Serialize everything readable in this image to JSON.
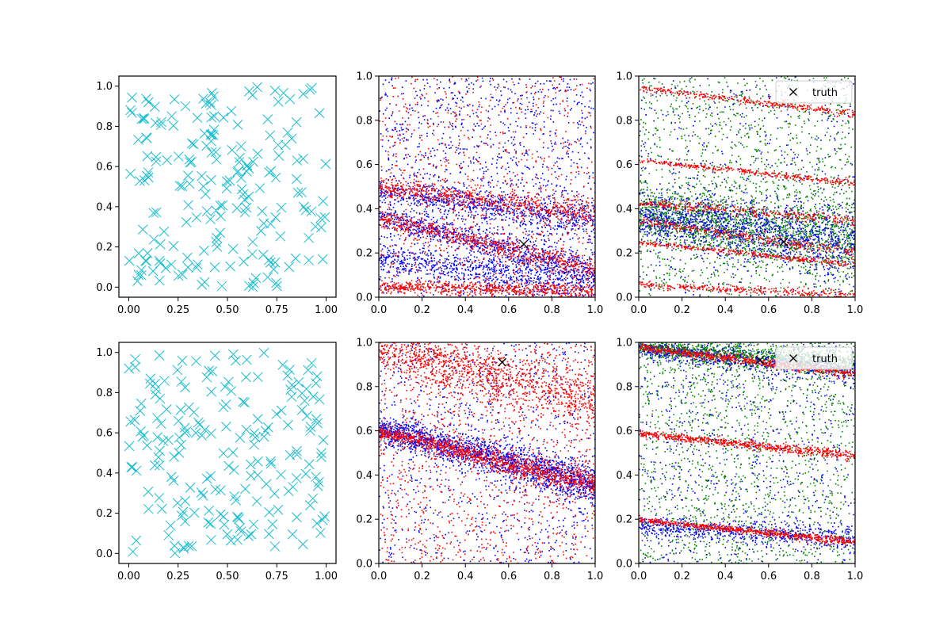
{
  "figure": {
    "rows": 2,
    "cols": 3
  },
  "chart_data": [
    {
      "id": "r0c0",
      "type": "scatter",
      "row": 0,
      "col": 0,
      "xlim": [
        -0.05,
        1.05
      ],
      "ylim": [
        -0.05,
        1.05
      ],
      "xticks": [
        0.0,
        0.25,
        0.5,
        0.75,
        1.0
      ],
      "xtick_labels": [
        "0.00",
        "0.25",
        "0.50",
        "0.75",
        "1.00"
      ],
      "yticks": [
        0.0,
        0.2,
        0.4,
        0.6,
        0.8,
        1.0
      ],
      "ytick_labels": [
        "0.0",
        "0.2",
        "0.4",
        "0.6",
        "0.8",
        "1.0"
      ],
      "grid": false,
      "series": [
        {
          "marker": "x",
          "color": "#17becf",
          "count": 200,
          "distribution": "uniform",
          "x_range": [
            0,
            1
          ],
          "y_range": [
            0,
            1
          ],
          "seed": 11
        }
      ]
    },
    {
      "id": "r0c1",
      "type": "scatter",
      "row": 0,
      "col": 1,
      "xlim": [
        0,
        1
      ],
      "ylim": [
        0,
        1
      ],
      "xticks": [
        0.0,
        0.2,
        0.4,
        0.6,
        0.8,
        1.0
      ],
      "xtick_labels": [
        "0.0",
        "0.2",
        "0.4",
        "0.6",
        "0.8",
        "1.0"
      ],
      "yticks": [
        0.0,
        0.2,
        0.4,
        0.6,
        0.8,
        1.0
      ],
      "ytick_labels": [
        "0.0",
        "0.2",
        "0.4",
        "0.6",
        "0.8",
        "1.0"
      ],
      "grid": false,
      "series": [
        {
          "marker": "dot",
          "color": "#0000ff",
          "bands": [
            [
              0.37,
              -0.25,
              0.022,
              0.26
            ],
            [
              0.18,
              -0.12,
              0.03,
              0.16
            ],
            [
              0.48,
              -0.13,
              0.025,
              0.06
            ]
          ],
          "band_points": 2200,
          "uniform_points": 1400,
          "seed": 21
        },
        {
          "marker": "dot",
          "color": "#ff0000",
          "bands": [
            [
              0.36,
              -0.23,
              0.018,
              0.36
            ],
            [
              0.05,
              -0.02,
              0.012,
              0.08
            ],
            [
              0.5,
              -0.12,
              0.02,
              0.06
            ]
          ],
          "band_points": 2000,
          "uniform_points": 800,
          "seed": 22
        }
      ],
      "truth": {
        "x": 0.67,
        "y": 0.24,
        "marker": "x"
      }
    },
    {
      "id": "r0c2",
      "type": "scatter",
      "row": 0,
      "col": 2,
      "xlim": [
        0,
        1
      ],
      "ylim": [
        0,
        1
      ],
      "xticks": [
        0.0,
        0.2,
        0.4,
        0.6,
        0.8,
        1.0
      ],
      "xtick_labels": [
        "0.0",
        "0.2",
        "0.4",
        "0.6",
        "0.8",
        "1.0"
      ],
      "yticks": [
        0.0,
        0.2,
        0.4,
        0.6,
        0.8,
        1.0
      ],
      "ytick_labels": [
        "0.0",
        "0.2",
        "0.4",
        "0.6",
        "0.8",
        "1.0"
      ],
      "grid": false,
      "series": [
        {
          "marker": "dot",
          "color": "#008000",
          "bands": [
            [
              0.38,
              -0.12,
              0.06,
              0.55
            ]
          ],
          "band_points": 1600,
          "uniform_points": 1300,
          "seed": 31
        },
        {
          "marker": "dot",
          "color": "#0000ff",
          "bands": [
            [
              0.37,
              -0.12,
              0.05,
              0.5
            ]
          ],
          "band_points": 1200,
          "uniform_points": 500,
          "seed": 32
        },
        {
          "marker": "dot",
          "color": "#ff0000",
          "bands": [
            [
              0.35,
              -0.15,
              0.009,
              0.35
            ],
            [
              0.43,
              -0.08,
              0.009,
              0.25
            ],
            [
              0.06,
              -0.05,
              0.007,
              0.15
            ],
            [
              0.95,
              -0.12,
              0.006,
              0.12
            ],
            [
              0.62,
              -0.1,
              0.005,
              0.05
            ],
            [
              0.25,
              -0.1,
              0.005,
              0.06
            ]
          ],
          "band_points": 1900,
          "uniform_points": 0,
          "seed": 33
        }
      ],
      "truth": {
        "x": 0.67,
        "y": 0.25,
        "marker": "x"
      },
      "legend": {
        "location": "upper right",
        "entries": [
          "truth"
        ]
      }
    },
    {
      "id": "r1c0",
      "type": "scatter",
      "row": 1,
      "col": 0,
      "xlim": [
        -0.05,
        1.05
      ],
      "ylim": [
        -0.05,
        1.05
      ],
      "xticks": [
        0.0,
        0.25,
        0.5,
        0.75,
        1.0
      ],
      "xtick_labels": [
        "0.00",
        "0.25",
        "0.50",
        "0.75",
        "1.00"
      ],
      "yticks": [
        0.0,
        0.2,
        0.4,
        0.6,
        0.8,
        1.0
      ],
      "ytick_labels": [
        "0.0",
        "0.2",
        "0.4",
        "0.6",
        "0.8",
        "1.0"
      ],
      "grid": false,
      "series": [
        {
          "marker": "x",
          "color": "#17becf",
          "count": 200,
          "distribution": "uniform",
          "x_range": [
            0,
            1
          ],
          "y_range": [
            0,
            1
          ],
          "seed": 41
        }
      ]
    },
    {
      "id": "r1c1",
      "type": "scatter",
      "row": 1,
      "col": 1,
      "xlim": [
        0,
        1
      ],
      "ylim": [
        0,
        1
      ],
      "xticks": [
        0.0,
        0.2,
        0.4,
        0.6,
        0.8,
        1.0
      ],
      "xtick_labels": [
        "0.0",
        "0.2",
        "0.4",
        "0.6",
        "0.8",
        "1.0"
      ],
      "yticks": [
        0.0,
        0.2,
        0.4,
        0.6,
        0.8,
        1.0
      ],
      "ytick_labels": [
        "0.0",
        "0.2",
        "0.4",
        "0.6",
        "0.8",
        "1.0"
      ],
      "grid": false,
      "series": [
        {
          "marker": "dot",
          "color": "#0000ff",
          "bands": [
            [
              0.61,
              -0.25,
              0.03,
              0.42
            ]
          ],
          "band_points": 1800,
          "uniform_points": 900,
          "seed": 51
        },
        {
          "marker": "dot",
          "color": "#ff0000",
          "bands": [
            [
              0.6,
              -0.24,
              0.018,
              0.45
            ],
            [
              0.98,
              -0.25,
              0.05,
              0.1
            ]
          ],
          "band_points": 2200,
          "uniform_points": 1200,
          "seed": 52
        }
      ],
      "truth": {
        "x": 0.57,
        "y": 0.91,
        "marker": "x"
      }
    },
    {
      "id": "r1c2",
      "type": "scatter",
      "row": 1,
      "col": 2,
      "xlim": [
        0,
        1
      ],
      "ylim": [
        0,
        1
      ],
      "xticks": [
        0.0,
        0.2,
        0.4,
        0.6,
        0.8,
        1.0
      ],
      "xtick_labels": [
        "0.0",
        "0.2",
        "0.4",
        "0.6",
        "0.8",
        "1.0"
      ],
      "yticks": [
        0.0,
        0.2,
        0.4,
        0.6,
        0.8,
        1.0
      ],
      "ytick_labels": [
        "0.0",
        "0.2",
        "0.4",
        "0.6",
        "0.8",
        "1.0"
      ],
      "grid": false,
      "series": [
        {
          "marker": "dot",
          "color": "#008000",
          "bands": [
            [
              0.98,
              -0.08,
              0.02,
              0.4
            ]
          ],
          "band_points": 1300,
          "uniform_points": 1500,
          "seed": 61
        },
        {
          "marker": "dot",
          "color": "#0000ff",
          "bands": [
            [
              0.97,
              -0.1,
              0.02,
              0.35
            ],
            [
              0.17,
              -0.05,
              0.02,
              0.1
            ]
          ],
          "band_points": 1200,
          "uniform_points": 700,
          "seed": 62
        },
        {
          "marker": "dot",
          "color": "#ff0000",
          "bands": [
            [
              0.98,
              -0.12,
              0.008,
              0.3
            ],
            [
              0.59,
              -0.1,
              0.008,
              0.22
            ],
            [
              0.2,
              -0.1,
              0.006,
              0.2
            ]
          ],
          "band_points": 1900,
          "uniform_points": 0,
          "seed": 63
        }
      ],
      "truth": {
        "x": 0.56,
        "y": 0.92,
        "marker": "x"
      },
      "legend": {
        "location": "upper right",
        "entries": [
          "truth"
        ]
      }
    }
  ]
}
